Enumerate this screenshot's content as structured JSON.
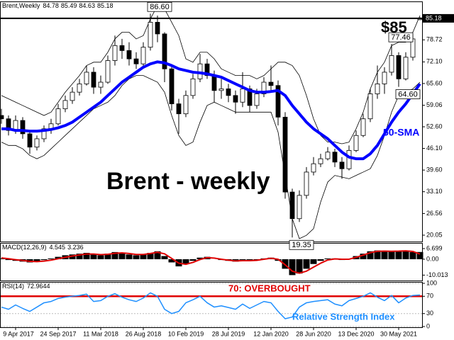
{
  "chart_data": {
    "type": "candlestick",
    "symbol": "Brent,Weekly",
    "title": "Brent - weekly",
    "price_note": "$85",
    "up_color": "#ffffff",
    "down_color": "#000000",
    "categories": [
      null,
      null,
      "9 Apr 2017",
      null,
      null,
      null,
      null,
      null,
      "24 Sep 2017",
      null,
      null,
      null,
      null,
      null,
      "11 Mar 2018",
      null,
      null,
      null,
      null,
      null,
      "26 Aug 2018",
      null,
      null,
      null,
      null,
      null,
      "10 Feb 2019",
      null,
      null,
      null,
      null,
      null,
      "28 Jul 2019",
      null,
      null,
      null,
      null,
      null,
      "12 Jan 2020",
      null,
      null,
      null,
      null,
      null,
      "28 Jun 2020",
      null,
      null,
      null,
      null,
      null,
      "13 Dec 2020",
      null,
      null,
      null,
      null,
      null,
      "30 May 2021",
      null,
      null,
      null
    ],
    "open": [
      56,
      55,
      51.5,
      54.5,
      50.5,
      46.5,
      49,
      52,
      53.5,
      58,
      60.5,
      63,
      65.5,
      69,
      64.5,
      66,
      72.5,
      77,
      75.5,
      73,
      71.5,
      76.5,
      84,
      80.5,
      70,
      59.5,
      56.5,
      62,
      67,
      71.5,
      68,
      63.5,
      64,
      62,
      60,
      64,
      59,
      62.5,
      66,
      65,
      55.5,
      33,
      25,
      32,
      39,
      41.5,
      43,
      45,
      42,
      40,
      45.5,
      50,
      55,
      62.5,
      65.5,
      69,
      74,
      67,
      73.5,
      84.78
    ],
    "high": [
      58,
      56,
      56,
      55.5,
      51,
      50,
      53,
      55,
      59.5,
      62,
      64.5,
      67,
      71,
      70.5,
      68,
      74,
      80,
      79,
      78,
      75,
      78,
      86.6,
      86,
      81,
      71,
      61,
      63.5,
      68.5,
      74.5,
      73,
      69.5,
      67,
      65.5,
      63.5,
      69,
      65,
      64,
      67.5,
      71,
      66.5,
      57,
      34,
      33.5,
      40.5,
      43.5,
      44.5,
      46.5,
      46,
      43.5,
      47,
      51.5,
      56.5,
      64,
      71,
      70.5,
      77.46,
      75,
      75,
      80.5,
      85.49
    ],
    "low": [
      53.5,
      50,
      50.5,
      49,
      44.5,
      45.5,
      48,
      50.5,
      53,
      57,
      59.5,
      62,
      65,
      62.5,
      62.5,
      65.5,
      71,
      73,
      71,
      70,
      70.5,
      75.5,
      78,
      66,
      57.5,
      50.5,
      55.5,
      61,
      66,
      67,
      60,
      61,
      60,
      56.5,
      58.5,
      57,
      58,
      61.5,
      63,
      53,
      31,
      19.35,
      24,
      31,
      38,
      40.5,
      42.5,
      40.5,
      37,
      39.5,
      45,
      49.5,
      54,
      61,
      62.5,
      68,
      64.6,
      66.5,
      72.5,
      84.63
    ],
    "close": [
      55,
      51.5,
      54.5,
      50.5,
      46.5,
      49,
      52,
      53.5,
      58,
      60.5,
      63,
      65.5,
      69,
      64.5,
      66,
      72.5,
      77,
      75.5,
      73,
      71.5,
      76.5,
      84,
      80.5,
      70,
      59.5,
      56.5,
      62,
      67,
      71.5,
      68,
      63.5,
      64,
      62,
      60,
      64,
      59,
      62.5,
      66,
      65,
      55.5,
      33,
      25,
      32,
      39,
      41.5,
      43,
      45,
      42,
      40,
      45.5,
      50,
      55,
      62.5,
      65.5,
      69,
      74,
      67,
      73.5,
      79,
      85.18
    ],
    "sma": {
      "name": "50-SMA",
      "color": "#0000ff",
      "values": [
        52,
        52,
        51.5,
        51.5,
        51.3,
        51.3,
        51.5,
        51.8,
        52.3,
        53,
        54,
        55.5,
        57,
        58.5,
        60,
        62,
        64,
        66,
        67.5,
        69,
        70.5,
        71.5,
        72.1,
        71.8,
        71,
        70,
        69.5,
        69,
        68.8,
        68.5,
        68,
        67.5,
        66.5,
        65.5,
        64.5,
        63.5,
        63,
        63,
        63.2,
        63.5,
        62,
        59,
        56.5,
        54,
        52,
        50.5,
        49,
        47,
        45,
        43.5,
        43,
        43,
        44.5,
        47,
        50.5,
        54,
        57,
        59.5,
        62.5,
        65.5
      ]
    },
    "bands": {
      "color": "#000000",
      "upper": [
        62,
        61,
        60,
        59,
        58,
        57,
        56,
        57,
        60,
        63,
        65.5,
        68,
        71,
        72,
        72,
        75,
        79,
        81,
        81,
        79,
        80,
        85,
        89,
        88,
        84,
        80,
        73,
        72,
        75,
        75,
        73,
        70,
        69,
        68,
        68,
        68,
        67,
        68,
        70,
        72,
        72,
        71,
        68,
        62,
        55,
        50,
        48,
        48,
        47.5,
        48,
        52,
        57,
        64,
        69,
        72,
        77,
        78,
        78,
        81,
        86
      ],
      "lower": [
        48,
        47,
        47,
        46,
        44,
        43,
        44,
        46,
        48,
        50,
        52,
        54,
        56,
        58,
        59,
        60,
        62,
        65,
        67,
        68,
        68,
        67,
        66,
        63,
        56,
        50,
        47,
        48,
        54,
        59,
        60,
        59,
        58,
        57,
        57,
        57,
        57,
        57,
        57,
        51,
        38,
        25,
        19,
        20,
        22,
        30,
        36,
        38,
        37.5,
        37,
        38,
        39,
        40,
        44,
        50,
        57,
        62,
        63,
        64,
        66
      ]
    },
    "annotations": [
      {
        "value": 86.6,
        "label": "86.60"
      },
      {
        "value": 77.46,
        "label": "77.46"
      },
      {
        "value": 64.6,
        "label": "64.60"
      },
      {
        "value": 19.35,
        "label": "19.35"
      }
    ],
    "ylim": [
      17.92,
      90.05
    ],
    "yticks": [
      78.72,
      {
        "value": 72.1,
        "label": "72.10"
      },
      {
        "value": 65.6,
        "label": "65.60"
      },
      59.06,
      {
        "value": 52.6,
        "label": "52.60"
      },
      {
        "value": 46.1,
        "label": "46.10"
      },
      {
        "value": 39.6,
        "label": "39.60"
      },
      {
        "value": 33.1,
        "label": "33.10"
      },
      26.56,
      20.05
    ],
    "macd": {
      "label": "MACD(12,26,9)",
      "color": "#000000",
      "histogram": [
        0.5,
        -0.5,
        -1,
        -1.5,
        -2,
        -1.5,
        -0.5,
        0.5,
        1.5,
        2.5,
        3,
        3.5,
        4,
        3,
        2.5,
        3.5,
        4.5,
        4,
        3,
        2.5,
        3,
        4,
        5,
        2,
        -2,
        -4.5,
        -3,
        -1,
        1,
        1.5,
        0,
        -0.5,
        -1,
        -1.5,
        -0.5,
        -1,
        -0.5,
        0.5,
        1,
        -1,
        -6,
        -10,
        -9,
        -6,
        -3,
        -1,
        0.5,
        0.5,
        -0.5,
        0,
        2,
        3.5,
        5,
        5.5,
        5,
        5,
        5.2,
        5.5,
        4.5,
        4.545
      ],
      "signal": {
        "color": "#e00000",
        "values": [
          0.8,
          0.3,
          -0.3,
          -0.8,
          -1.3,
          -1.5,
          -1.2,
          -0.6,
          0.3,
          1.2,
          2,
          2.7,
          3.3,
          3.3,
          2.9,
          3.1,
          3.7,
          4,
          3.6,
          3,
          3,
          3.6,
          4.4,
          3.4,
          0.5,
          -2.5,
          -3.2,
          -2,
          -0.2,
          1,
          0.7,
          0,
          -0.6,
          -1.1,
          -0.9,
          -0.9,
          -0.7,
          0,
          0.6,
          0,
          -3.5,
          -7.5,
          -8.8,
          -7.5,
          -5,
          -2.5,
          -0.5,
          0.2,
          0,
          0,
          1.2,
          2.6,
          4.1,
          5,
          5.1,
          5,
          5.1,
          5.3,
          4.9,
          3.236
        ]
      },
      "ylim": [
        -13.4,
        9.8
      ],
      "yticks": [
        6.699,
        {
          "value": 0,
          "label": "0.00"
        },
        -10.013
      ]
    },
    "rsi": {
      "label": "RSI(14)",
      "name": "Relative Strength Index",
      "color": "#1e8fff",
      "values": [
        45,
        40,
        50,
        42,
        35,
        45,
        55,
        58,
        65,
        68,
        70,
        72,
        75,
        58,
        60,
        70,
        76,
        68,
        62,
        58,
        66,
        78,
        70,
        40,
        30,
        35,
        55,
        62,
        70,
        55,
        45,
        48,
        44,
        40,
        52,
        42,
        50,
        58,
        55,
        35,
        18,
        22,
        45,
        55,
        58,
        60,
        62,
        52,
        48,
        60,
        65,
        70,
        78,
        68,
        60,
        72,
        55,
        66,
        72,
        72.9644
      ],
      "level": 70,
      "level_color": "#e00000",
      "level_label": "70: OVERBOUGHT",
      "ylim": [
        0,
        100
      ],
      "yticks": [
        100,
        70,
        30,
        0
      ]
    }
  }
}
